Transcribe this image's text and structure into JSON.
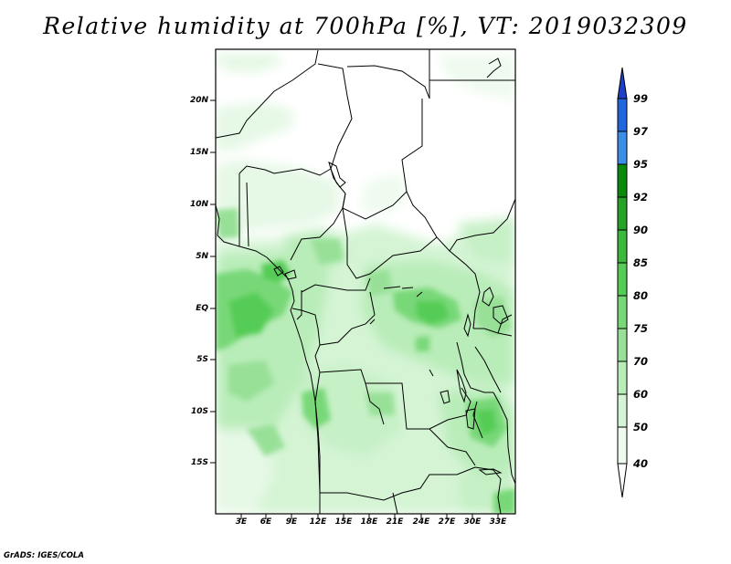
{
  "title": "Relative humidity at 700hPa [%], VT: 2019032309",
  "credit": "GrADS: IGES/COLA",
  "map": {
    "lat_labels": [
      "20N",
      "15N",
      "10N",
      "5N",
      "EQ",
      "5S",
      "10S",
      "15S"
    ],
    "lon_labels": [
      "3E",
      "6E",
      "9E",
      "12E",
      "15E",
      "18E",
      "21E",
      "24E",
      "27E",
      "30E",
      "33E"
    ]
  },
  "colorbar": {
    "labels": [
      "99",
      "97",
      "95",
      "92",
      "90",
      "85",
      "80",
      "75",
      "70",
      "60",
      "50",
      "40"
    ],
    "colors": [
      "#1e3fc8",
      "#2266dd",
      "#3c8ee8",
      "#0a8a0a",
      "#26a226",
      "#3cb83c",
      "#55cc55",
      "#78d878",
      "#98e098",
      "#b8ecb8",
      "#d4f4d4",
      "#eefbee",
      "#ffffff"
    ]
  }
}
